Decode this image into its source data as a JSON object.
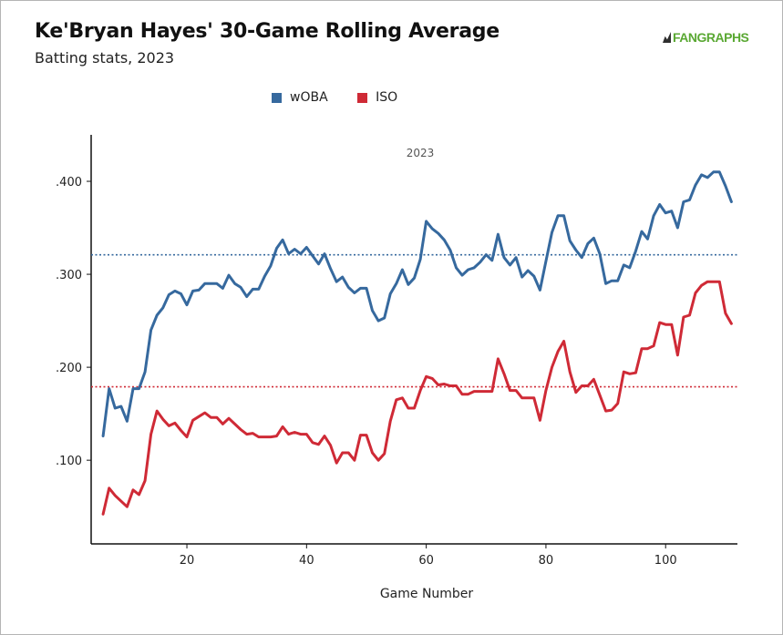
{
  "title": "Ke'Bryan Hayes' 30-Game Rolling Average",
  "subtitle": "Batting stats, 2023",
  "logo_text": "FANGRAPHS",
  "colors": {
    "woba": "#36699e",
    "iso": "#cf2a36",
    "logo": "#5aa833"
  },
  "chart_data": {
    "type": "line",
    "annotation": "2023",
    "xlabel": "Game Number",
    "ylabel": "",
    "xlim": [
      4,
      112
    ],
    "ylim": [
      0.01,
      0.45
    ],
    "xticks": [
      20,
      40,
      60,
      80,
      100
    ],
    "yticks": [
      0.1,
      0.2,
      0.3,
      0.4
    ],
    "ytick_labels": [
      ".100",
      ".200",
      ".300",
      ".400"
    ],
    "grid": false,
    "legend_position": "top-center",
    "reference_lines": [
      {
        "series": "wOBA",
        "y": 0.321,
        "style": "dotted"
      },
      {
        "series": "ISO",
        "y": 0.179,
        "style": "dotted"
      }
    ],
    "x": [
      6,
      7,
      8,
      9,
      10,
      11,
      12,
      13,
      14,
      15,
      16,
      17,
      18,
      19,
      20,
      21,
      22,
      23,
      24,
      25,
      26,
      27,
      28,
      29,
      30,
      31,
      32,
      33,
      34,
      35,
      36,
      37,
      38,
      39,
      40,
      41,
      42,
      43,
      44,
      45,
      46,
      47,
      48,
      49,
      50,
      51,
      52,
      53,
      54,
      55,
      56,
      57,
      58,
      59,
      60,
      61,
      62,
      63,
      64,
      65,
      66,
      67,
      68,
      69,
      70,
      71,
      72,
      73,
      74,
      75,
      76,
      77,
      78,
      79,
      80,
      81,
      82,
      83,
      84,
      85,
      86,
      87,
      88,
      89,
      90,
      91,
      92,
      93,
      94,
      95,
      96,
      97,
      98,
      99,
      100,
      101,
      102,
      103,
      104,
      105,
      106,
      107,
      108,
      109,
      110,
      111
    ],
    "series": [
      {
        "name": "wOBA",
        "values": [
          0.126,
          0.177,
          0.156,
          0.158,
          0.142,
          0.177,
          0.177,
          0.195,
          0.24,
          0.256,
          0.264,
          0.278,
          0.282,
          0.279,
          0.267,
          0.282,
          0.283,
          0.29,
          0.29,
          0.29,
          0.285,
          0.299,
          0.29,
          0.286,
          0.276,
          0.284,
          0.284,
          0.298,
          0.309,
          0.328,
          0.337,
          0.322,
          0.327,
          0.322,
          0.329,
          0.32,
          0.311,
          0.322,
          0.306,
          0.292,
          0.297,
          0.286,
          0.28,
          0.285,
          0.285,
          0.261,
          0.25,
          0.253,
          0.279,
          0.29,
          0.305,
          0.289,
          0.296,
          0.316,
          0.357,
          0.349,
          0.344,
          0.337,
          0.326,
          0.307,
          0.299,
          0.305,
          0.307,
          0.313,
          0.321,
          0.315,
          0.343,
          0.318,
          0.31,
          0.318,
          0.297,
          0.304,
          0.298,
          0.283,
          0.314,
          0.345,
          0.363,
          0.363,
          0.336,
          0.326,
          0.318,
          0.333,
          0.339,
          0.322,
          0.29,
          0.293,
          0.293,
          0.31,
          0.307,
          0.325,
          0.346,
          0.338,
          0.363,
          0.375,
          0.366,
          0.368,
          0.35,
          0.378,
          0.38,
          0.396,
          0.407,
          0.404,
          0.41,
          0.41,
          0.395,
          0.378
        ]
      },
      {
        "name": "ISO",
        "values": [
          0.042,
          0.07,
          0.062,
          0.056,
          0.05,
          0.068,
          0.063,
          0.078,
          0.128,
          0.153,
          0.144,
          0.137,
          0.14,
          0.132,
          0.125,
          0.143,
          0.147,
          0.151,
          0.146,
          0.146,
          0.139,
          0.145,
          0.139,
          0.133,
          0.128,
          0.129,
          0.125,
          0.125,
          0.125,
          0.126,
          0.136,
          0.128,
          0.13,
          0.128,
          0.128,
          0.119,
          0.117,
          0.126,
          0.116,
          0.097,
          0.108,
          0.108,
          0.1,
          0.127,
          0.127,
          0.108,
          0.1,
          0.107,
          0.142,
          0.165,
          0.167,
          0.156,
          0.156,
          0.175,
          0.19,
          0.188,
          0.181,
          0.182,
          0.18,
          0.18,
          0.171,
          0.171,
          0.174,
          0.174,
          0.174,
          0.174,
          0.209,
          0.193,
          0.175,
          0.175,
          0.167,
          0.167,
          0.167,
          0.143,
          0.175,
          0.2,
          0.217,
          0.228,
          0.195,
          0.173,
          0.18,
          0.18,
          0.187,
          0.17,
          0.153,
          0.154,
          0.161,
          0.195,
          0.193,
          0.194,
          0.22,
          0.22,
          0.223,
          0.248,
          0.246,
          0.246,
          0.213,
          0.254,
          0.256,
          0.28,
          0.288,
          0.292,
          0.292,
          0.292,
          0.258,
          0.247
        ]
      }
    ]
  }
}
